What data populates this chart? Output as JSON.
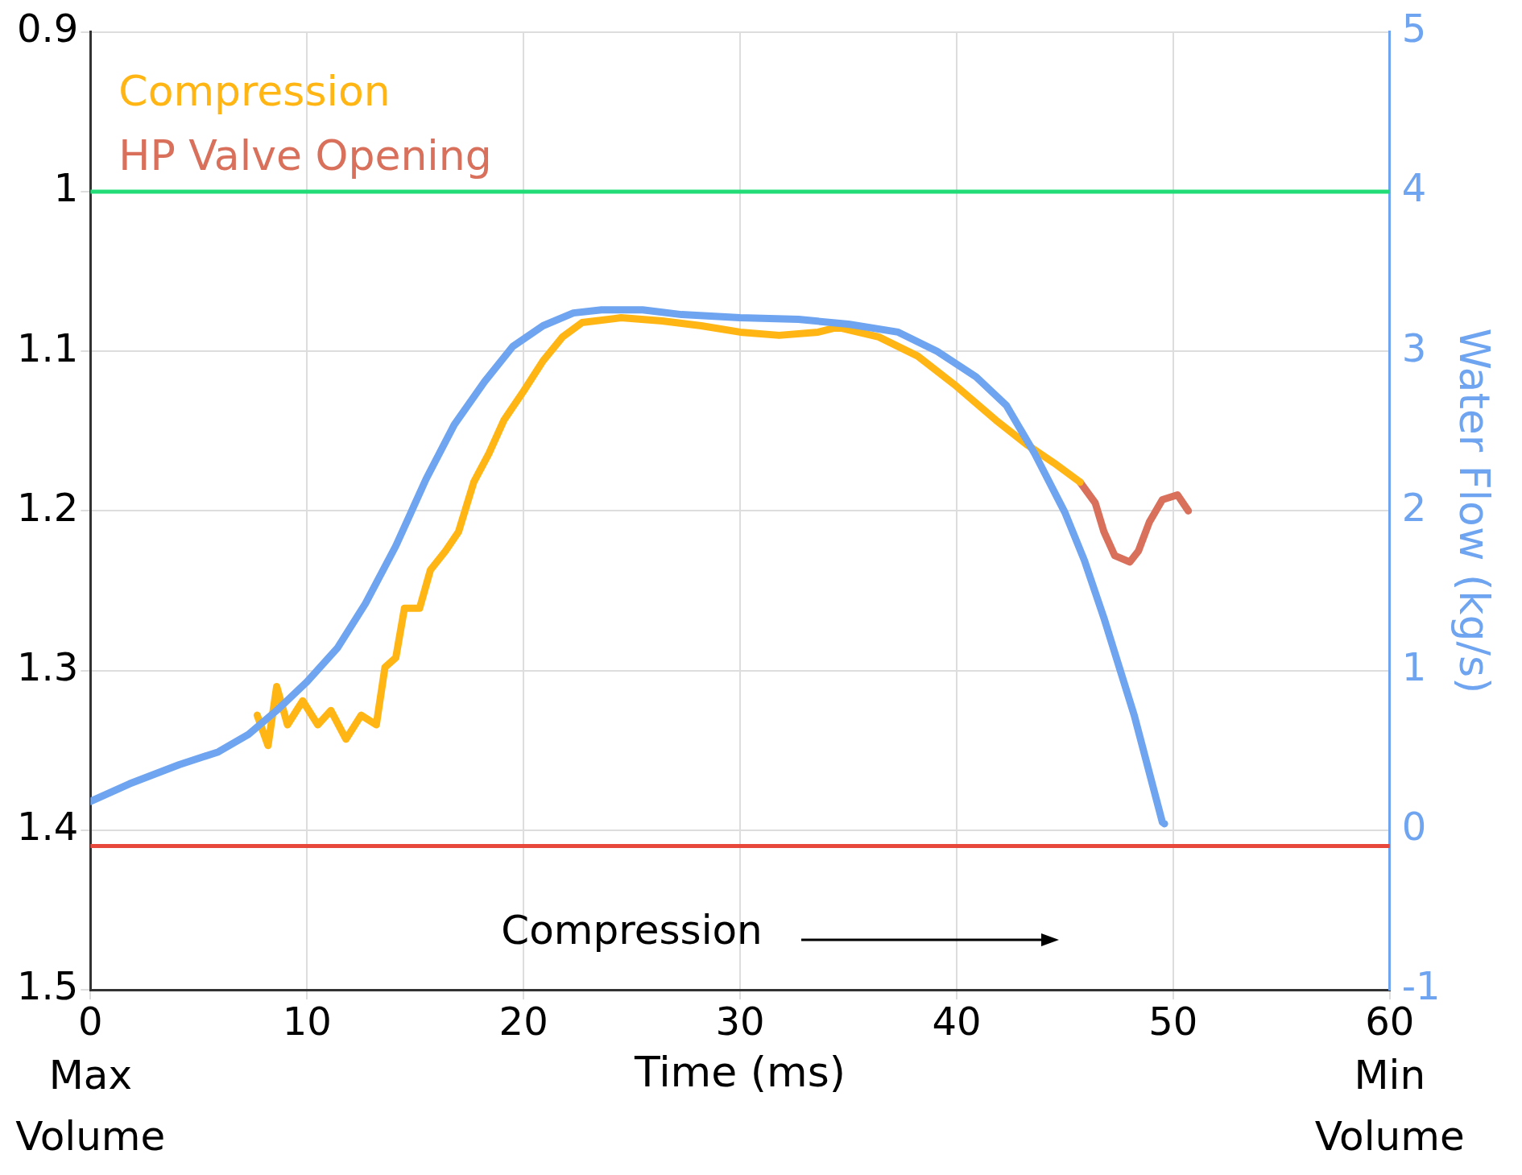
{
  "chart_data": {
    "type": "line",
    "xlabel": "Time (ms)",
    "y2label": "Water Flow (kg/s)",
    "xlim": [
      0,
      60
    ],
    "xticks": [
      0,
      10,
      20,
      30,
      40,
      50,
      60
    ],
    "ylim": [
      1.5,
      0.9
    ],
    "yticks": [
      0.9,
      1,
      1.1,
      1.2,
      1.3,
      1.4,
      1.5
    ],
    "y2lim": [
      -1,
      5
    ],
    "y2ticks": [
      -1,
      0,
      1,
      2,
      3,
      4,
      5
    ],
    "grid": true,
    "legend": "top left",
    "series": [
      {
        "axis": "y2",
        "color": "#6ea4f0",
        "x": [
          0,
          1.8,
          4.1,
          5.9,
          7.3,
          8.6,
          10,
          11.4,
          12.7,
          14.1,
          15.5,
          16.8,
          18.2,
          19.5,
          20.9,
          22.3,
          23.6,
          25.5,
          27.3,
          30,
          32.7,
          35,
          37.3,
          39.1,
          40.9,
          42.3,
          43.6,
          45,
          45.9,
          46.8,
          48.2,
          49.5,
          49.6
        ],
        "values": [
          0.18,
          0.29,
          0.41,
          0.49,
          0.6,
          0.75,
          0.93,
          1.14,
          1.42,
          1.78,
          2.2,
          2.54,
          2.81,
          3.03,
          3.16,
          3.24,
          3.26,
          3.26,
          3.23,
          3.21,
          3.2,
          3.17,
          3.12,
          3.0,
          2.84,
          2.66,
          2.36,
          1.99,
          1.69,
          1.33,
          0.72,
          0.05,
          0.04
        ]
      },
      {
        "name": "Compression",
        "color": "#ffb614",
        "x": [
          7.7,
          8.2,
          8.6,
          9.1,
          9.8,
          10.5,
          11.1,
          11.8,
          12.5,
          13.2,
          13.6,
          14.1,
          14.5,
          15.2,
          15.7,
          16.4,
          17,
          17.7,
          18.4,
          19.1,
          20,
          20.9,
          21.8,
          22.7,
          24.5,
          26.4,
          28.2,
          30,
          31.8,
          33.6,
          34.5,
          36.4,
          38.2,
          40,
          41.8,
          43.2,
          44.5,
          45.7
        ],
        "values": [
          1.328,
          1.347,
          1.31,
          1.334,
          1.319,
          1.334,
          1.325,
          1.343,
          1.328,
          1.334,
          1.298,
          1.292,
          1.261,
          1.261,
          1.237,
          1.225,
          1.213,
          1.182,
          1.164,
          1.143,
          1.125,
          1.106,
          1.091,
          1.082,
          1.079,
          1.081,
          1.084,
          1.088,
          1.09,
          1.088,
          1.085,
          1.091,
          1.103,
          1.122,
          1.143,
          1.158,
          1.17,
          1.182
        ]
      },
      {
        "name": "HP Valve Opening",
        "color": "#d9705c",
        "x": [
          45.7,
          46.4,
          46.8,
          47.3,
          48,
          48.4,
          48.9,
          49.5,
          50.2,
          50.7
        ],
        "values": [
          1.182,
          1.195,
          1.213,
          1.228,
          1.232,
          1.225,
          1.207,
          1.193,
          1.19,
          1.2
        ]
      }
    ],
    "ref_lines": [
      {
        "axis": "y",
        "value": 1.0,
        "color": "#22dd77"
      },
      {
        "axis": "y",
        "value": 1.41,
        "color": "#e8473c"
      }
    ],
    "annotations": [
      "Compression",
      "Max Volume",
      "Min Volume"
    ]
  }
}
